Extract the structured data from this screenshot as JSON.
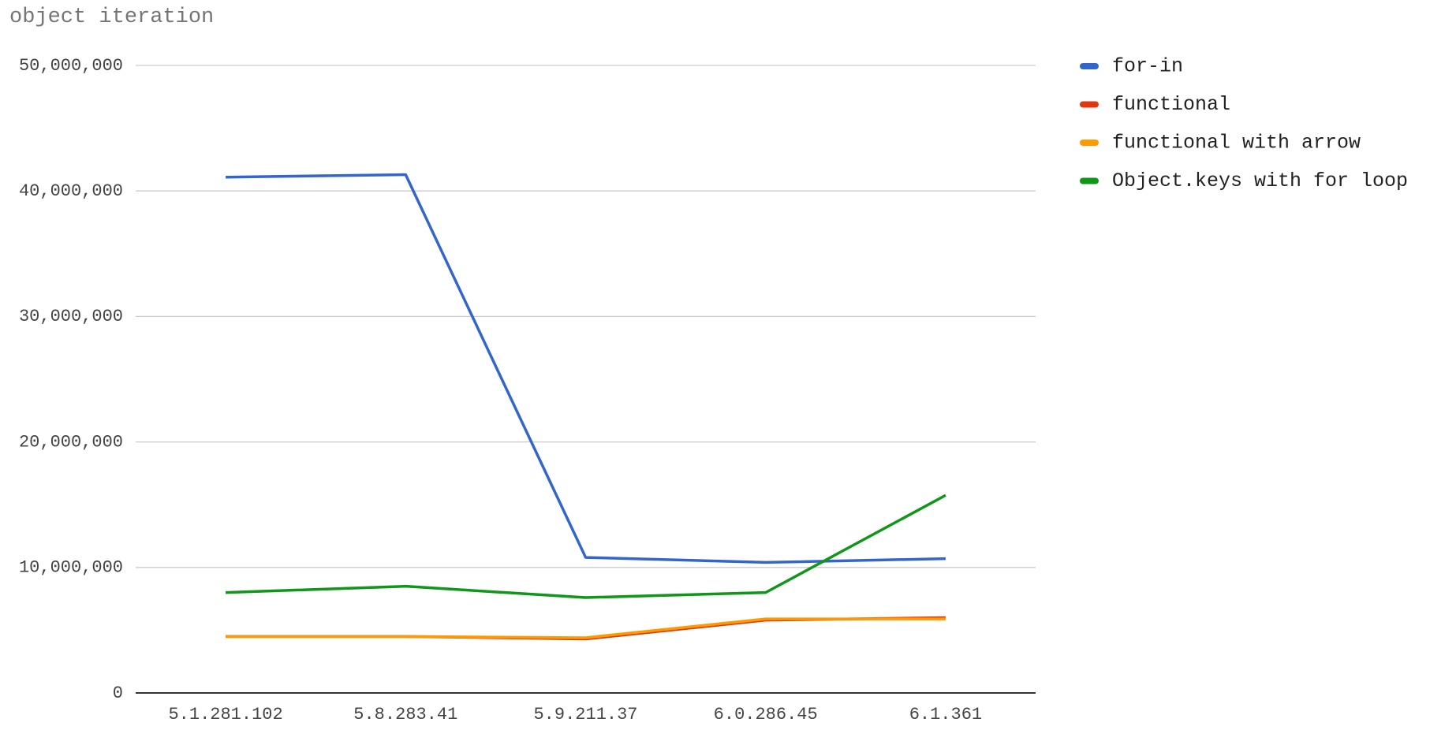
{
  "chart_data": {
    "type": "line",
    "title": "object iteration",
    "categories": [
      "5.1.281.102",
      "5.8.283.41",
      "5.9.211.37",
      "6.0.286.45",
      "6.1.361"
    ],
    "series": [
      {
        "name": "for-in",
        "color": "#3366cc",
        "values": [
          41100000,
          41300000,
          10800000,
          10400000,
          10700000
        ]
      },
      {
        "name": "functional",
        "color": "#dc3912",
        "values": [
          4500000,
          4500000,
          4300000,
          5800000,
          6000000
        ]
      },
      {
        "name": "functional with arrow",
        "color": "#ff9900",
        "values": [
          4500000,
          4500000,
          4400000,
          5900000,
          5900000
        ]
      },
      {
        "name": "Object.keys with for loop",
        "color": "#109618",
        "values": [
          8000000,
          8500000,
          7600000,
          8000000,
          15750000
        ]
      }
    ],
    "ylim": [
      0,
      50000000
    ],
    "yticks": [
      0,
      {
        "value": 10000000,
        "label": "10,000,000"
      },
      {
        "value": 20000000,
        "label": "20,000,000"
      },
      {
        "value": 30000000,
        "label": "30,000,000"
      },
      {
        "value": 40000000,
        "label": "40,000,000"
      },
      {
        "value": 50000000,
        "label": "50,000,000"
      }
    ],
    "grid": true,
    "legend": "right"
  }
}
